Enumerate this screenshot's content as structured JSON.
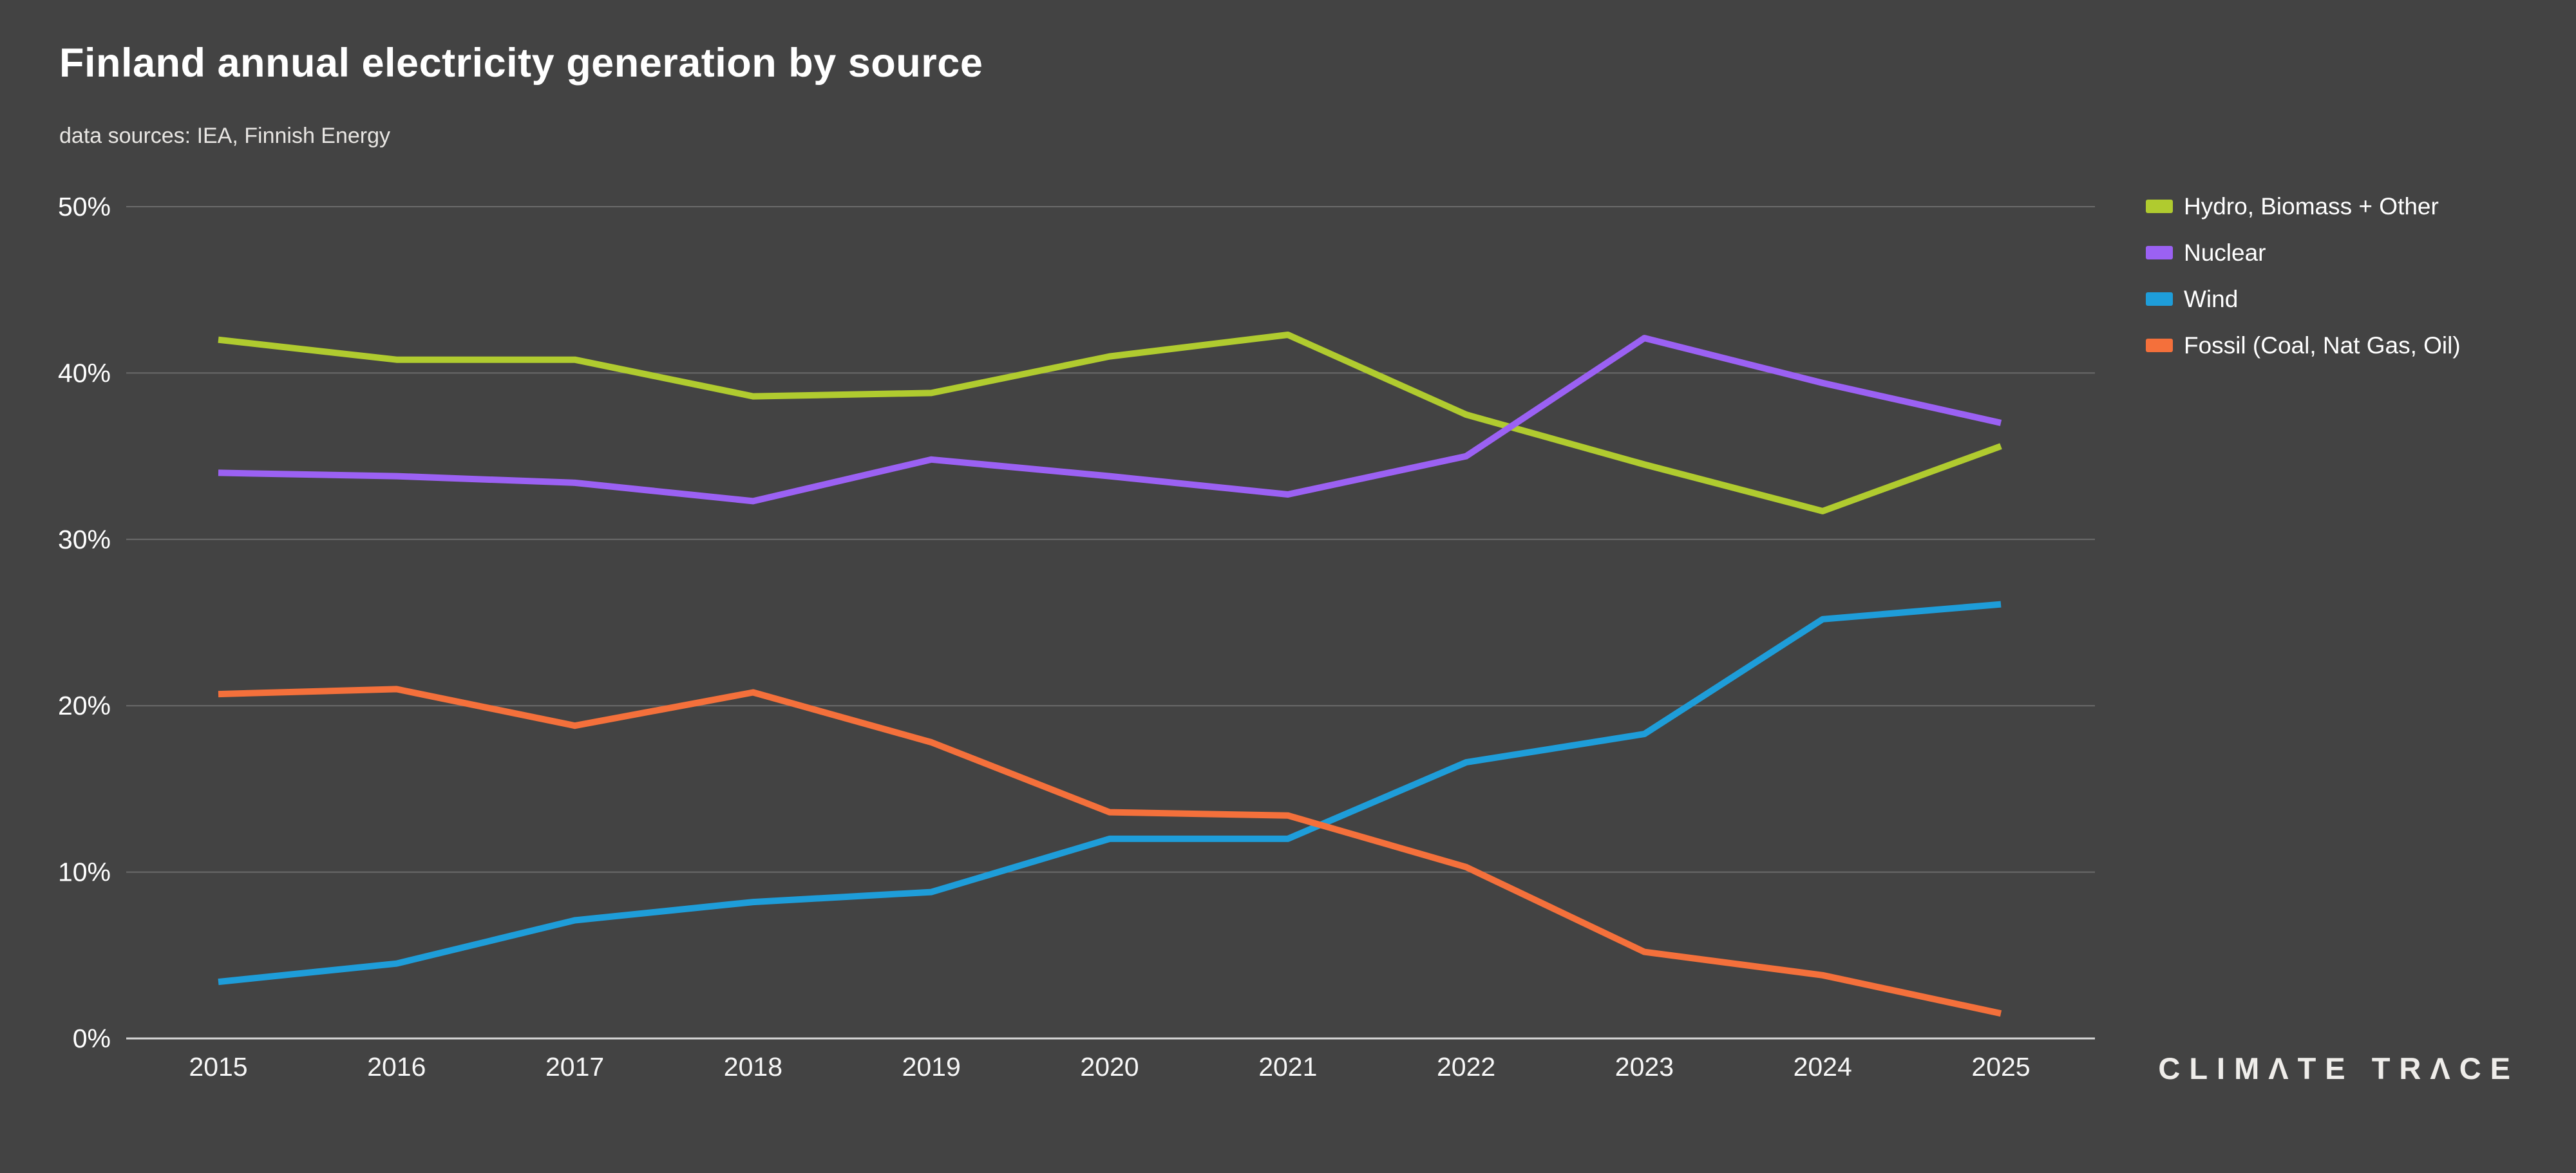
{
  "header": {
    "title": "Finland annual electricity generation by source",
    "subtitle": "data sources: IEA, Finnish Energy"
  },
  "logo": {
    "text": "CLIMΛTE TRΛCE"
  },
  "colors": {
    "background": "#434343",
    "gridline": "#6b6b6b",
    "axis_line": "#d5d5d5",
    "label_text": "#ffffff"
  },
  "chart_data": {
    "type": "line",
    "title": "Finland annual electricity generation by source",
    "xlabel": "",
    "ylabel": "",
    "unit": "%",
    "ylim": [
      0,
      50
    ],
    "grid": true,
    "legend_position": "top-right",
    "x": [
      2015,
      2016,
      2017,
      2018,
      2019,
      2020,
      2021,
      2022,
      2023,
      2024,
      2025
    ],
    "x_tick_labels": [
      "2015",
      "2016",
      "2017",
      "2018",
      "2019",
      "2020",
      "2021",
      "2022",
      "2023",
      "2024",
      "2025"
    ],
    "y_ticks": [
      0,
      10,
      20,
      30,
      40,
      50
    ],
    "y_tick_labels": [
      "0%",
      "10%",
      "20%",
      "30%",
      "40%",
      "50%"
    ],
    "series": [
      {
        "name": "Hydro, Biomass + Other",
        "color": "#b0cb2f",
        "values": [
          42.0,
          40.8,
          40.8,
          38.6,
          38.8,
          41.0,
          42.3,
          37.5,
          34.5,
          31.7,
          35.6
        ]
      },
      {
        "name": "Nuclear",
        "color": "#9b61f3",
        "values": [
          34.0,
          33.8,
          33.4,
          32.3,
          34.8,
          33.8,
          32.7,
          35.0,
          42.1,
          39.4,
          37.0
        ]
      },
      {
        "name": "Wind",
        "color": "#1e9dd9",
        "values": [
          3.4,
          4.5,
          7.1,
          8.2,
          8.8,
          12.0,
          12.0,
          16.6,
          18.3,
          25.2,
          26.1
        ]
      },
      {
        "name": "Fossil (Coal, Nat Gas, Oil)",
        "color": "#f4703b",
        "values": [
          20.7,
          21.0,
          18.8,
          20.8,
          17.8,
          13.6,
          13.4,
          10.3,
          5.2,
          3.8,
          1.5
        ]
      }
    ]
  }
}
